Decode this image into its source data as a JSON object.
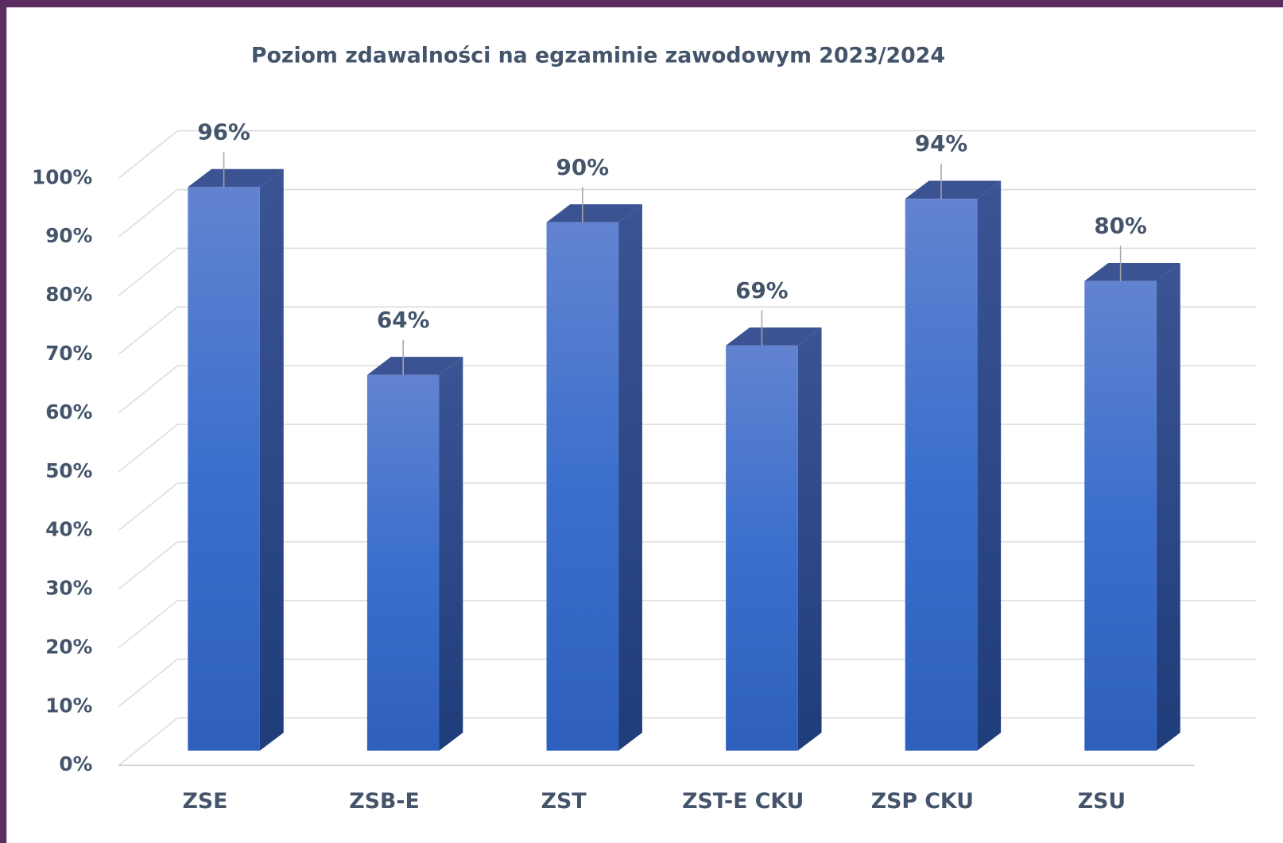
{
  "chart_data": {
    "type": "bar3d",
    "title": "Poziom zdawalności na egzaminie zawodowym 2023/2024",
    "categories": [
      "ZSE",
      "ZSB-E",
      "ZST",
      "ZST-E CKU",
      "ZSP CKU",
      "ZSU"
    ],
    "values": [
      96,
      64,
      90,
      69,
      94,
      80
    ],
    "value_labels": [
      "96%",
      "64%",
      "90%",
      "69%",
      "94%",
      "80%"
    ],
    "color": "#4472c4",
    "ylim": [
      0,
      100
    ],
    "yticks": [
      {
        "value": 0,
        "label": "0%"
      },
      {
        "value": 10,
        "label": "10%"
      },
      {
        "value": 20,
        "label": "20%"
      },
      {
        "value": 30,
        "label": "30%"
      },
      {
        "value": 40,
        "label": "40%"
      },
      {
        "value": 50,
        "label": "50%"
      },
      {
        "value": 60,
        "label": "60%"
      },
      {
        "value": 70,
        "label": "70%"
      },
      {
        "value": 80,
        "label": "80%"
      },
      {
        "value": 90,
        "label": "90%"
      },
      {
        "value": 100,
        "label": "100%"
      }
    ],
    "grid": true
  }
}
